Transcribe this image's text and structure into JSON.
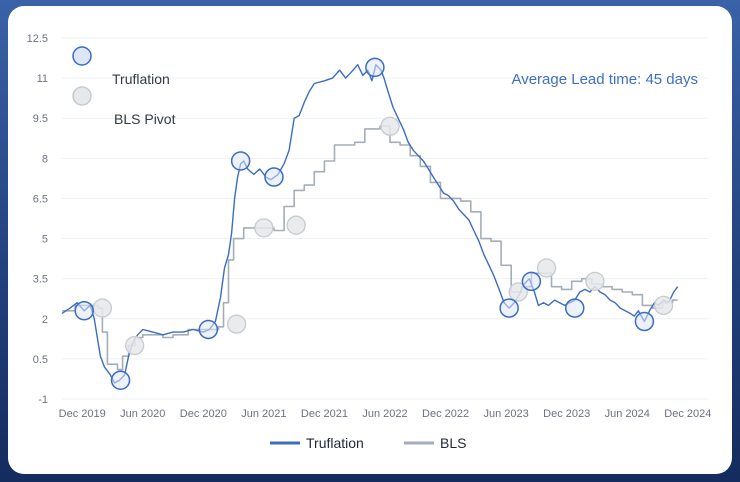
{
  "colors": {
    "truflation": "#3b6cc4",
    "bls": "#a3aeb8",
    "marker_truflation_fill": "#dde6f6",
    "marker_bls_fill": "#e6e8ea",
    "marker_bls_stroke": "#c5cbd1",
    "grid": "#eef1f4",
    "annotation": "#3f70c2"
  },
  "chart_data": {
    "type": "line",
    "x_unit": "months since Oct 2019",
    "x_ticks": [
      {
        "month": 2,
        "label": "Dec 2019"
      },
      {
        "month": 8,
        "label": "Jun 2020"
      },
      {
        "month": 14,
        "label": "Dec 2020"
      },
      {
        "month": 20,
        "label": "Jun 2021"
      },
      {
        "month": 26,
        "label": "Dec 2021"
      },
      {
        "month": 32,
        "label": "Jun 2022"
      },
      {
        "month": 38,
        "label": "Dec 2022"
      },
      {
        "month": 44,
        "label": "Jun 2023"
      },
      {
        "month": 50,
        "label": "Dec 2023"
      },
      {
        "month": 56,
        "label": "Jun 2024"
      },
      {
        "month": 62,
        "label": "Dec 2024"
      }
    ],
    "y_ticks": [
      "12.5",
      "11",
      "9.5",
      "8",
      "6.5",
      "5",
      "3.5",
      "2",
      "0.5",
      "-1"
    ],
    "ylim": [
      -1,
      12.5
    ],
    "xlim": [
      0,
      64
    ],
    "grid": true,
    "annotation": "Average Lead time: 45 days",
    "legend_markers": [
      "Truflation",
      "BLS Pivot"
    ],
    "legend_lines": [
      "Truflation",
      "BLS"
    ],
    "series": [
      {
        "name": "Truflation",
        "points": [
          [
            0,
            2.2
          ],
          [
            0.8,
            2.4
          ],
          [
            1.5,
            2.6
          ],
          [
            2.2,
            2.3
          ],
          [
            2.8,
            2.5
          ],
          [
            3.2,
            2.0
          ],
          [
            3.5,
            1.3
          ],
          [
            3.8,
            0.6
          ],
          [
            4.2,
            0.2
          ],
          [
            4.8,
            -0.1
          ],
          [
            5.2,
            -0.4
          ],
          [
            5.7,
            -0.3
          ],
          [
            6.2,
            -0.1
          ],
          [
            6.6,
            0.6
          ],
          [
            7.0,
            1.1
          ],
          [
            7.5,
            1.4
          ],
          [
            8.0,
            1.6
          ],
          [
            9.0,
            1.5
          ],
          [
            10.0,
            1.4
          ],
          [
            11.0,
            1.5
          ],
          [
            12.0,
            1.5
          ],
          [
            13.0,
            1.6
          ],
          [
            14.0,
            1.5
          ],
          [
            14.6,
            1.6
          ],
          [
            15.2,
            1.9
          ],
          [
            15.7,
            2.8
          ],
          [
            16.1,
            3.9
          ],
          [
            16.5,
            4.4
          ],
          [
            16.8,
            5.2
          ],
          [
            17.1,
            6.5
          ],
          [
            17.4,
            7.3
          ],
          [
            17.7,
            7.8
          ],
          [
            18.0,
            7.9
          ],
          [
            18.4,
            7.6
          ],
          [
            19.0,
            7.4
          ],
          [
            19.6,
            7.6
          ],
          [
            20.2,
            7.3
          ],
          [
            20.7,
            7.2
          ],
          [
            21.4,
            7.4
          ],
          [
            22.0,
            7.8
          ],
          [
            22.5,
            8.3
          ],
          [
            23.0,
            9.5
          ],
          [
            23.5,
            9.6
          ],
          [
            24.0,
            10.1
          ],
          [
            24.5,
            10.5
          ],
          [
            25.0,
            10.8
          ],
          [
            26.0,
            10.9
          ],
          [
            26.8,
            11.0
          ],
          [
            27.5,
            11.3
          ],
          [
            28.1,
            11.0
          ],
          [
            28.6,
            11.2
          ],
          [
            29.3,
            11.5
          ],
          [
            29.8,
            11.1
          ],
          [
            30.3,
            11.3
          ],
          [
            30.7,
            10.9
          ],
          [
            31.1,
            11.5
          ],
          [
            31.6,
            11.3
          ],
          [
            31.9,
            11.0
          ],
          [
            32.3,
            10.5
          ],
          [
            32.8,
            9.9
          ],
          [
            33.3,
            9.5
          ],
          [
            33.8,
            9.1
          ],
          [
            34.3,
            8.6
          ],
          [
            34.8,
            8.3
          ],
          [
            35.3,
            8.1
          ],
          [
            35.8,
            7.9
          ],
          [
            36.3,
            7.6
          ],
          [
            36.8,
            7.3
          ],
          [
            37.3,
            7.0
          ],
          [
            37.8,
            6.7
          ],
          [
            38.3,
            6.6
          ],
          [
            38.8,
            6.4
          ],
          [
            39.3,
            6.1
          ],
          [
            39.8,
            5.9
          ],
          [
            40.3,
            5.7
          ],
          [
            40.8,
            5.3
          ],
          [
            41.3,
            4.9
          ],
          [
            41.8,
            4.4
          ],
          [
            42.3,
            4.0
          ],
          [
            42.8,
            3.6
          ],
          [
            43.3,
            3.1
          ],
          [
            43.8,
            2.6
          ],
          [
            44.3,
            2.4
          ],
          [
            44.8,
            2.6
          ],
          [
            45.3,
            2.9
          ],
          [
            45.8,
            3.3
          ],
          [
            46.3,
            3.5
          ],
          [
            46.8,
            3.0
          ],
          [
            47.2,
            2.5
          ],
          [
            47.7,
            2.6
          ],
          [
            48.2,
            2.5
          ],
          [
            48.8,
            2.7
          ],
          [
            49.3,
            2.6
          ],
          [
            49.8,
            2.5
          ],
          [
            50.3,
            2.6
          ],
          [
            50.8,
            2.7
          ],
          [
            51.3,
            3.0
          ],
          [
            51.8,
            3.1
          ],
          [
            52.3,
            3.0
          ],
          [
            52.8,
            3.2
          ],
          [
            53.3,
            3.0
          ],
          [
            53.8,
            2.9
          ],
          [
            54.3,
            2.7
          ],
          [
            54.8,
            2.6
          ],
          [
            55.3,
            2.4
          ],
          [
            55.8,
            2.3
          ],
          [
            56.3,
            2.2
          ],
          [
            56.7,
            2.1
          ],
          [
            57.1,
            2.3
          ],
          [
            57.4,
            2.1
          ],
          [
            57.7,
            1.9
          ],
          [
            58.2,
            2.3
          ],
          [
            58.7,
            2.6
          ],
          [
            59.1,
            2.5
          ],
          [
            59.6,
            2.7
          ],
          [
            60.1,
            2.6
          ],
          [
            60.6,
            3.0
          ],
          [
            61.0,
            3.2
          ]
        ]
      },
      {
        "name": "BLS",
        "points": [
          [
            0,
            2.3
          ],
          [
            1.3,
            2.3
          ],
          [
            1.3,
            2.5
          ],
          [
            3.6,
            2.5
          ],
          [
            3.6,
            2.4
          ],
          [
            4.0,
            2.4
          ],
          [
            4.0,
            1.5
          ],
          [
            4.5,
            1.5
          ],
          [
            4.5,
            0.3
          ],
          [
            5.5,
            0.3
          ],
          [
            5.5,
            0.1
          ],
          [
            6.0,
            0.1
          ],
          [
            6.0,
            0.6
          ],
          [
            6.6,
            0.6
          ],
          [
            6.6,
            1.0
          ],
          [
            7.2,
            1.0
          ],
          [
            7.2,
            1.3
          ],
          [
            8.0,
            1.3
          ],
          [
            8.0,
            1.4
          ],
          [
            10.0,
            1.4
          ],
          [
            10.0,
            1.3
          ],
          [
            11.0,
            1.3
          ],
          [
            11.0,
            1.4
          ],
          [
            12.5,
            1.4
          ],
          [
            12.5,
            1.6
          ],
          [
            15.5,
            1.6
          ],
          [
            15.5,
            1.7
          ],
          [
            16.0,
            1.7
          ],
          [
            16.0,
            2.6
          ],
          [
            16.5,
            2.6
          ],
          [
            16.5,
            4.2
          ],
          [
            17.0,
            4.2
          ],
          [
            17.0,
            5.0
          ],
          [
            18.0,
            5.0
          ],
          [
            18.0,
            5.4
          ],
          [
            19.0,
            5.4
          ],
          [
            19.0,
            5.4
          ],
          [
            21.0,
            5.4
          ],
          [
            21.0,
            5.3
          ],
          [
            22.0,
            5.3
          ],
          [
            22.0,
            6.2
          ],
          [
            23.0,
            6.2
          ],
          [
            23.0,
            6.8
          ],
          [
            24.0,
            6.8
          ],
          [
            24.0,
            7.0
          ],
          [
            25.0,
            7.0
          ],
          [
            25.0,
            7.5
          ],
          [
            26.0,
            7.5
          ],
          [
            26.0,
            7.9
          ],
          [
            27.0,
            7.9
          ],
          [
            27.0,
            8.5
          ],
          [
            28.0,
            8.5
          ],
          [
            28.0,
            8.5
          ],
          [
            29.0,
            8.5
          ],
          [
            29.0,
            8.6
          ],
          [
            30.0,
            8.6
          ],
          [
            30.0,
            9.1
          ],
          [
            31.5,
            9.1
          ],
          [
            31.5,
            9.2
          ],
          [
            32.5,
            9.2
          ],
          [
            32.5,
            8.6
          ],
          [
            33.5,
            8.6
          ],
          [
            33.5,
            8.5
          ],
          [
            34.5,
            8.5
          ],
          [
            34.5,
            8.1
          ],
          [
            35.5,
            8.1
          ],
          [
            35.5,
            7.7
          ],
          [
            36.5,
            7.7
          ],
          [
            36.5,
            7.1
          ],
          [
            37.5,
            7.1
          ],
          [
            37.5,
            6.5
          ],
          [
            38.5,
            6.5
          ],
          [
            38.5,
            6.5
          ],
          [
            39.5,
            6.5
          ],
          [
            39.5,
            6.4
          ],
          [
            40.5,
            6.4
          ],
          [
            40.5,
            6.0
          ],
          [
            41.5,
            6.0
          ],
          [
            41.5,
            5.0
          ],
          [
            42.5,
            5.0
          ],
          [
            42.5,
            4.9
          ],
          [
            43.5,
            4.9
          ],
          [
            43.5,
            4.0
          ],
          [
            44.5,
            4.0
          ],
          [
            44.5,
            3.0
          ],
          [
            45.5,
            3.0
          ],
          [
            45.5,
            3.2
          ],
          [
            46.5,
            3.2
          ],
          [
            46.5,
            3.7
          ],
          [
            47.5,
            3.7
          ],
          [
            47.5,
            3.7
          ],
          [
            48.5,
            3.7
          ],
          [
            48.5,
            3.2
          ],
          [
            49.5,
            3.2
          ],
          [
            49.5,
            3.1
          ],
          [
            50.5,
            3.1
          ],
          [
            50.5,
            3.4
          ],
          [
            51.5,
            3.4
          ],
          [
            51.5,
            3.5
          ],
          [
            52.5,
            3.5
          ],
          [
            52.5,
            3.3
          ],
          [
            53.5,
            3.3
          ],
          [
            53.5,
            3.2
          ],
          [
            54.5,
            3.2
          ],
          [
            54.5,
            3.1
          ],
          [
            55.5,
            3.1
          ],
          [
            55.5,
            3.0
          ],
          [
            56.5,
            3.0
          ],
          [
            56.5,
            2.9
          ],
          [
            57.5,
            2.9
          ],
          [
            57.5,
            2.5
          ],
          [
            58.5,
            2.5
          ],
          [
            58.5,
            2.4
          ],
          [
            59.5,
            2.4
          ],
          [
            59.5,
            2.6
          ],
          [
            60.5,
            2.6
          ],
          [
            60.5,
            2.7
          ],
          [
            61.0,
            2.7
          ]
        ]
      }
    ],
    "pivots": {
      "Truflation": [
        [
          2.2,
          2.3
        ],
        [
          5.8,
          -0.3
        ],
        [
          14.5,
          1.6
        ],
        [
          17.7,
          7.9
        ],
        [
          21.0,
          7.3
        ],
        [
          31.0,
          11.4
        ],
        [
          44.3,
          2.4
        ],
        [
          46.5,
          3.4
        ],
        [
          50.8,
          2.4
        ],
        [
          57.7,
          1.9
        ]
      ],
      "BLS": [
        [
          4.0,
          2.4
        ],
        [
          7.2,
          1.0
        ],
        [
          17.3,
          1.8
        ],
        [
          20.0,
          5.4
        ],
        [
          23.2,
          5.5
        ],
        [
          32.5,
          9.2
        ],
        [
          45.2,
          3.0
        ],
        [
          48.0,
          3.9
        ],
        [
          52.8,
          3.4
        ],
        [
          59.6,
          2.5
        ]
      ]
    }
  }
}
